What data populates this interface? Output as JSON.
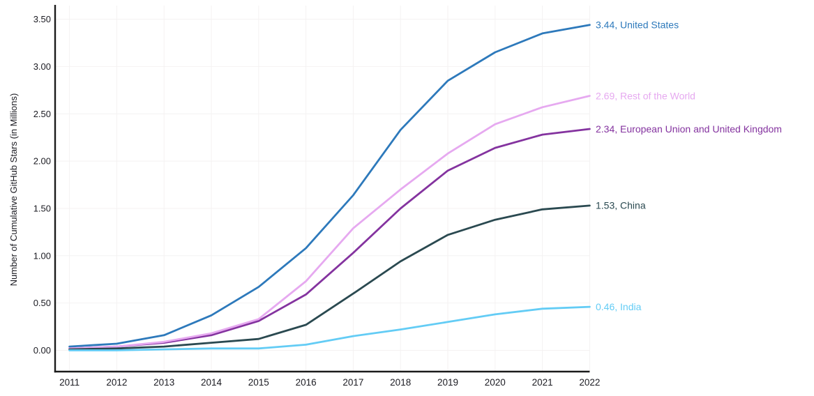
{
  "page": {
    "background_color": "#ffffff",
    "text_color": "#1b1b22"
  },
  "chart_data": {
    "type": "line",
    "title": "",
    "ylabel": "Number of Cumulative GitHub Stars (in Millions)",
    "xlabel": "",
    "x": [
      2011,
      2012,
      2013,
      2014,
      2015,
      2016,
      2017,
      2018,
      2019,
      2020,
      2021,
      2022
    ],
    "x_tick_labels": [
      "2011",
      "2012",
      "2013",
      "2014",
      "2015",
      "2016",
      "2017",
      "2018",
      "2019",
      "2020",
      "2021",
      "2022"
    ],
    "y_ticks": [
      0,
      0.5,
      1,
      1.5,
      2,
      2.5,
      3,
      3.5
    ],
    "y_tick_labels": [
      "0.00",
      "0.50",
      "1.00",
      "1.50",
      "2.00",
      "2.50",
      "3.00",
      "3.50"
    ],
    "ylim": [
      0,
      3.5
    ],
    "grid": true,
    "legend_position": "right-end-of-line-labels",
    "series": [
      {
        "name": "United States",
        "color": "#2d79bb",
        "end_value": "3.44",
        "end_label": "3.44, United States",
        "values": [
          0.04,
          0.07,
          0.16,
          0.37,
          0.67,
          1.08,
          1.64,
          2.33,
          2.85,
          3.15,
          3.35,
          3.44
        ]
      },
      {
        "name": "Rest of the World",
        "color": "#e6a9f0",
        "end_value": "2.69",
        "end_label": "2.69, Rest of the World",
        "values": [
          0.02,
          0.04,
          0.09,
          0.18,
          0.33,
          0.73,
          1.29,
          1.7,
          2.08,
          2.39,
          2.57,
          2.69
        ]
      },
      {
        "name": "European Union and United Kingdom",
        "color": "#84339f",
        "end_value": "2.34",
        "end_label": "2.34, European Union and United Kingdom",
        "values": [
          0.02,
          0.04,
          0.08,
          0.16,
          0.31,
          0.59,
          1.03,
          1.5,
          1.9,
          2.14,
          2.28,
          2.34
        ]
      },
      {
        "name": "China",
        "color": "#2a4950",
        "end_value": "1.53",
        "end_label": "1.53, China",
        "values": [
          0.01,
          0.02,
          0.04,
          0.08,
          0.12,
          0.27,
          0.6,
          0.94,
          1.22,
          1.38,
          1.49,
          1.53
        ]
      },
      {
        "name": "India",
        "color": "#63ccf5",
        "end_value": "0.46",
        "end_label": "0.46, India",
        "values": [
          0.0,
          0.0,
          0.01,
          0.02,
          0.02,
          0.06,
          0.15,
          0.22,
          0.3,
          0.38,
          0.44,
          0.46
        ]
      }
    ]
  }
}
